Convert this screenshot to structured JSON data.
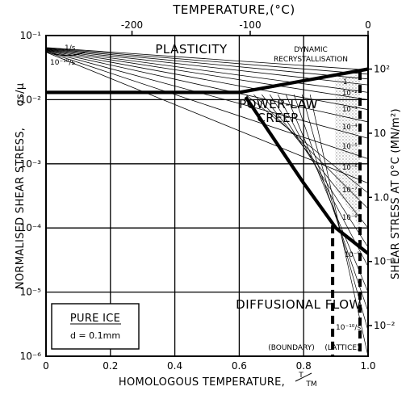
{
  "chart_data": {
    "type": "line",
    "title_top_axis": "TEMPERATURE,(°C)",
    "xlabel": "HOMOLOGOUS TEMPERATURE, T/T_M",
    "xlabel_main": "HOMOLOGOUS TEMPERATURE,",
    "xlabel_frac_top": "T",
    "xlabel_frac_bot": "TM",
    "ylabel": "NORMALISED SHEAR STRESS, σs/μ",
    "ylabel_main": "NORMALISED SHEAR STRESS,",
    "ylabel_sym": "σs/μ",
    "ylabel_right": "SHEAR STRESS AT 0°C (MN/m²)",
    "x_ticks": [
      "0",
      "0.2",
      "0.4",
      "0.6",
      "0.8",
      "1.0"
    ],
    "xlim": [
      0,
      1.0
    ],
    "top_ticks": [
      "-200",
      "-100",
      "0"
    ],
    "top_tick_values_homologous": [
      0.267,
      0.634,
      1.0
    ],
    "y_ticks": [
      "10⁻⁶",
      "10⁻⁵",
      "10⁻⁴",
      "10⁻³",
      "10⁻²",
      "10⁻¹"
    ],
    "y_tick_values": [
      1e-06,
      1e-05,
      0.0001,
      0.001,
      0.01,
      0.1
    ],
    "ylim": [
      1e-06,
      0.1
    ],
    "y_scale": "log",
    "right_ticks": [
      "10²",
      "10",
      "1.0",
      "10⁻¹",
      "10⁻²"
    ],
    "right_tick_values_normalised": [
      0.03,
      0.003,
      0.0003,
      3e-05,
      3e-06
    ],
    "grid": true,
    "regions": [
      "PLASTICITY",
      "DYNAMIC",
      "RECRYSTALLISATION",
      "POWER-LAW",
      "CREEP",
      "DIFFUSIONAL FLOW",
      "(BOUNDARY)",
      "(LATTICE)"
    ],
    "strain_rate_labels": [
      "1/s",
      "10⁻¹⁰/s",
      "1",
      "10⁻²",
      "10⁻³",
      "10⁻⁴",
      "10⁻⁵",
      "10⁻⁶",
      "10⁻⁷",
      "10⁻⁸",
      "10⁻⁹",
      "10⁻¹⁰/s"
    ],
    "legend": {
      "title": "PURE ICE",
      "subtitle": "d = 0.1mm",
      "placement": "bottom-left"
    },
    "series": [
      {
        "x": [
          0,
          0.6,
          1.0
        ],
        "y": [
          0.013,
          0.013,
          0.03
        ]
      },
      {
        "x": [
          0.62,
          0.8,
          0.9,
          1.0
        ],
        "y": [
          0.011,
          0.0005,
          0.0001,
          4e-05
        ]
      },
      {
        "x": [
          0.89,
          0.89
        ],
        "y": [
          0.00011,
          1e-06
        ]
      },
      {
        "x": [
          0.975,
          0.975
        ],
        "y": [
          0.027,
          1e-06
        ]
      }
    ],
    "contours": {
      "x_start": 0,
      "y_start_range": [
        0.055,
        0.065
      ],
      "x_end": 1.0,
      "y_end_values": [
        0.029,
        0.025,
        0.021,
        0.017,
        0.013,
        0.01,
        0.007,
        0.0045,
        0.0025,
        0.0012,
        0.0005
      ]
    }
  }
}
